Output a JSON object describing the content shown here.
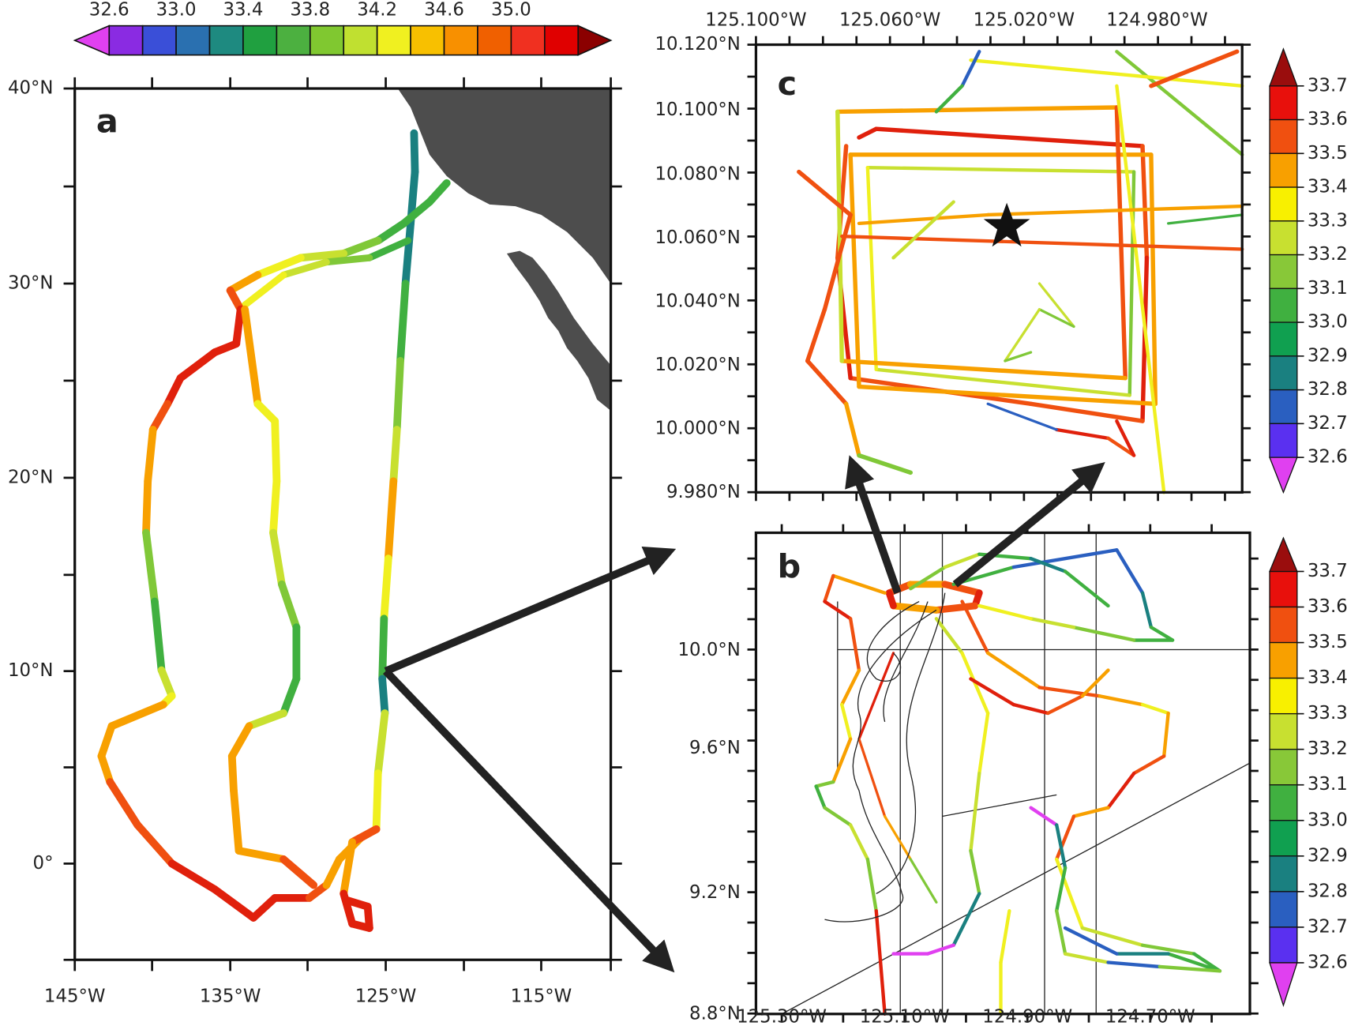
{
  "colorbar_top": {
    "labels": [
      "32.6",
      "33.0",
      "33.4",
      "33.8",
      "34.2",
      "34.6",
      "35.0"
    ]
  },
  "panel_a": {
    "label": "a",
    "x_labels": [
      "145°W",
      "135°W",
      "125°W",
      "115°W"
    ],
    "y_labels": [
      "40°N",
      "30°N",
      "20°N",
      "10°N",
      "0°"
    ]
  },
  "panel_c": {
    "label": "c",
    "x_labels": [
      "125.100°W",
      "125.060°W",
      "125.020°W",
      "124.980°W"
    ],
    "y_labels": [
      "10.120°N",
      "10.100°N",
      "10.080°N",
      "10.060°N",
      "10.040°N",
      "10.020°N",
      "10.000°N",
      "9.980°N"
    ],
    "colorbar_labels": [
      "33.7",
      "33.6",
      "33.5",
      "33.4",
      "33.3",
      "33.2",
      "33.1",
      "33.0",
      "32.9",
      "32.8",
      "32.7",
      "32.6"
    ]
  },
  "panel_b": {
    "label": "b",
    "x_labels": [
      "125.30°W",
      "125.10°W",
      "124.90°W",
      "124.70°W"
    ],
    "y_labels": [
      "10.0°N",
      "9.6°N",
      "9.2°N",
      "8.8°N"
    ],
    "colorbar_labels": [
      "33.7",
      "33.6",
      "33.5",
      "33.4",
      "33.3",
      "33.2",
      "33.1",
      "33.0",
      "32.9",
      "32.8",
      "32.7",
      "32.6"
    ]
  }
}
